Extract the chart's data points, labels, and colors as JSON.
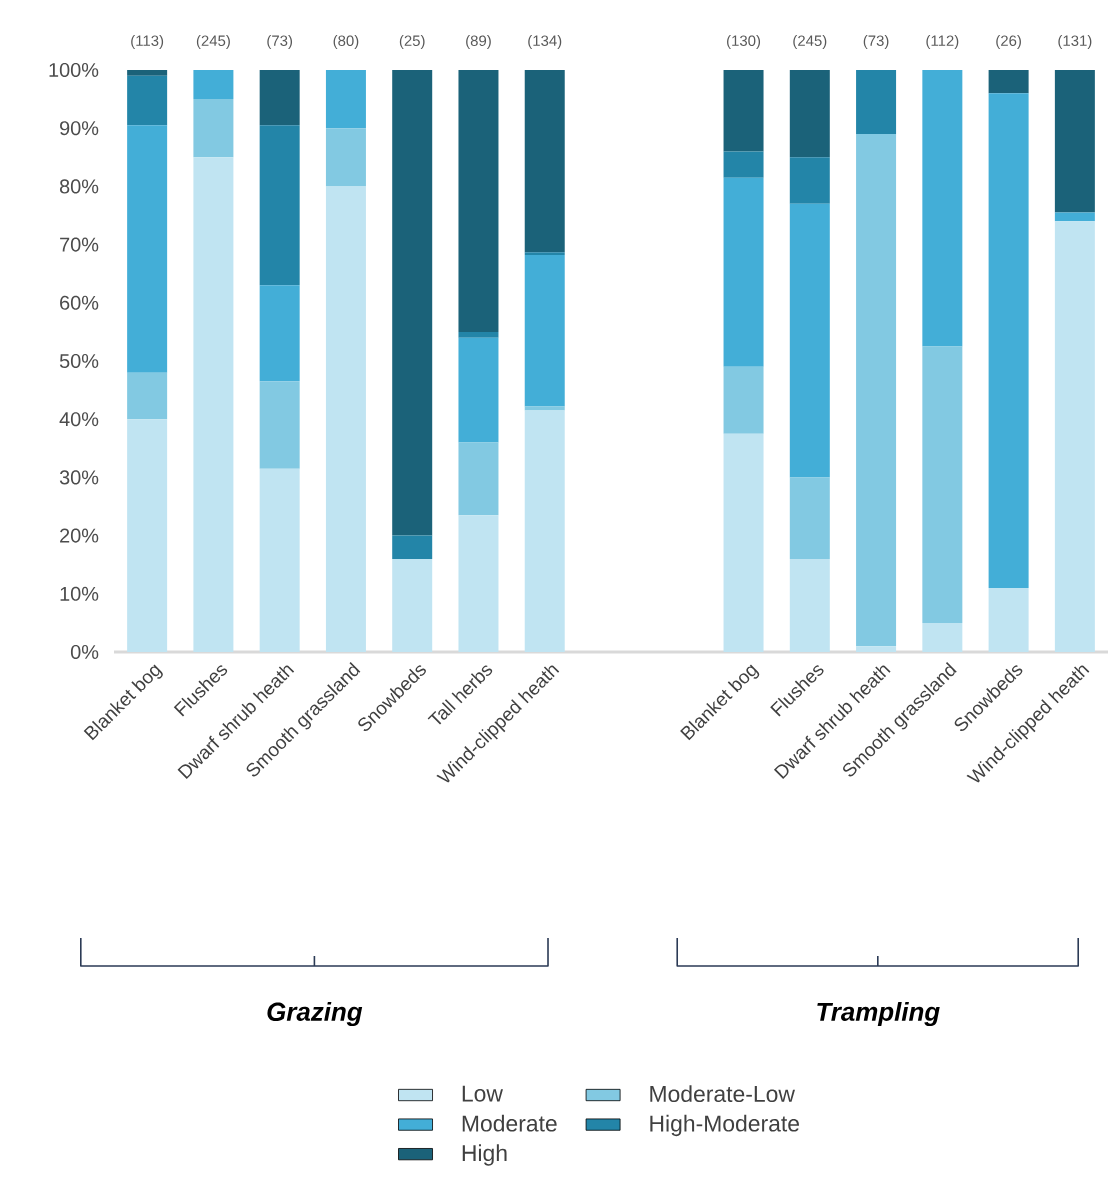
{
  "chart_data": {
    "type": "bar",
    "stacked": true,
    "categories": [
      "Blanket bog",
      "Flushes",
      "Dwarf shrub heath",
      "Smooth grassland",
      "Snowbeds",
      "Tall herbs",
      "Wind-clipped heath",
      null,
      null,
      "Blanket bog",
      "Flushes",
      "Dwarf shrub heath",
      "Smooth grassland",
      "Snowbeds",
      "Wind-clipped heath"
    ],
    "series": [
      {
        "name": "Low",
        "color": "#c0e4f2",
        "values": [
          40,
          85,
          31.5,
          80,
          16,
          23.5,
          41.5,
          null,
          null,
          37.5,
          16,
          1,
          5,
          11,
          74
        ]
      },
      {
        "name": "Moderate-Low",
        "color": "#82c9e2",
        "values": [
          8,
          10,
          15,
          10,
          0,
          12.5,
          0.7,
          null,
          null,
          11.5,
          14,
          88,
          47.5,
          0,
          0
        ]
      },
      {
        "name": "Moderate",
        "color": "#43aed7",
        "values": [
          42.5,
          5,
          16.5,
          10,
          0,
          18,
          26,
          null,
          null,
          32.5,
          47,
          0,
          47.5,
          85,
          1.5
        ]
      },
      {
        "name": "High-Moderate",
        "color": "#2385a8",
        "values": [
          8.5,
          0,
          27.5,
          0,
          4,
          1,
          0.5,
          null,
          null,
          4.5,
          8,
          11,
          0,
          0,
          0
        ]
      },
      {
        "name": "High",
        "color": "#1b6279",
        "values": [
          1,
          0,
          9.5,
          0,
          80,
          45,
          31.3,
          null,
          null,
          14,
          15,
          0,
          0,
          4,
          24.5
        ]
      }
    ],
    "ylim": [
      0,
      100
    ],
    "yticks": [
      {
        "value": 0,
        "label": "0%"
      },
      {
        "value": 10,
        "label": "10%"
      },
      {
        "value": 20,
        "label": "20%"
      },
      {
        "value": 30,
        "label": "30%"
      },
      {
        "value": 40,
        "label": "40%"
      },
      {
        "value": 50,
        "label": "50%"
      },
      {
        "value": 60,
        "label": "60%"
      },
      {
        "value": 70,
        "label": "70%"
      },
      {
        "value": 80,
        "label": "80%"
      },
      {
        "value": 90,
        "label": "90%"
      },
      {
        "value": 100,
        "label": "100%"
      }
    ],
    "annotations": [
      "(113)",
      "(245)",
      "(73)",
      "(80)",
      "(25)",
      "(89)",
      "(134)",
      "(130)",
      "(245)",
      "(73)",
      "(112)",
      "(26)",
      "(131)",
      "Grazing",
      "Trampling"
    ],
    "legend": "bottom"
  }
}
